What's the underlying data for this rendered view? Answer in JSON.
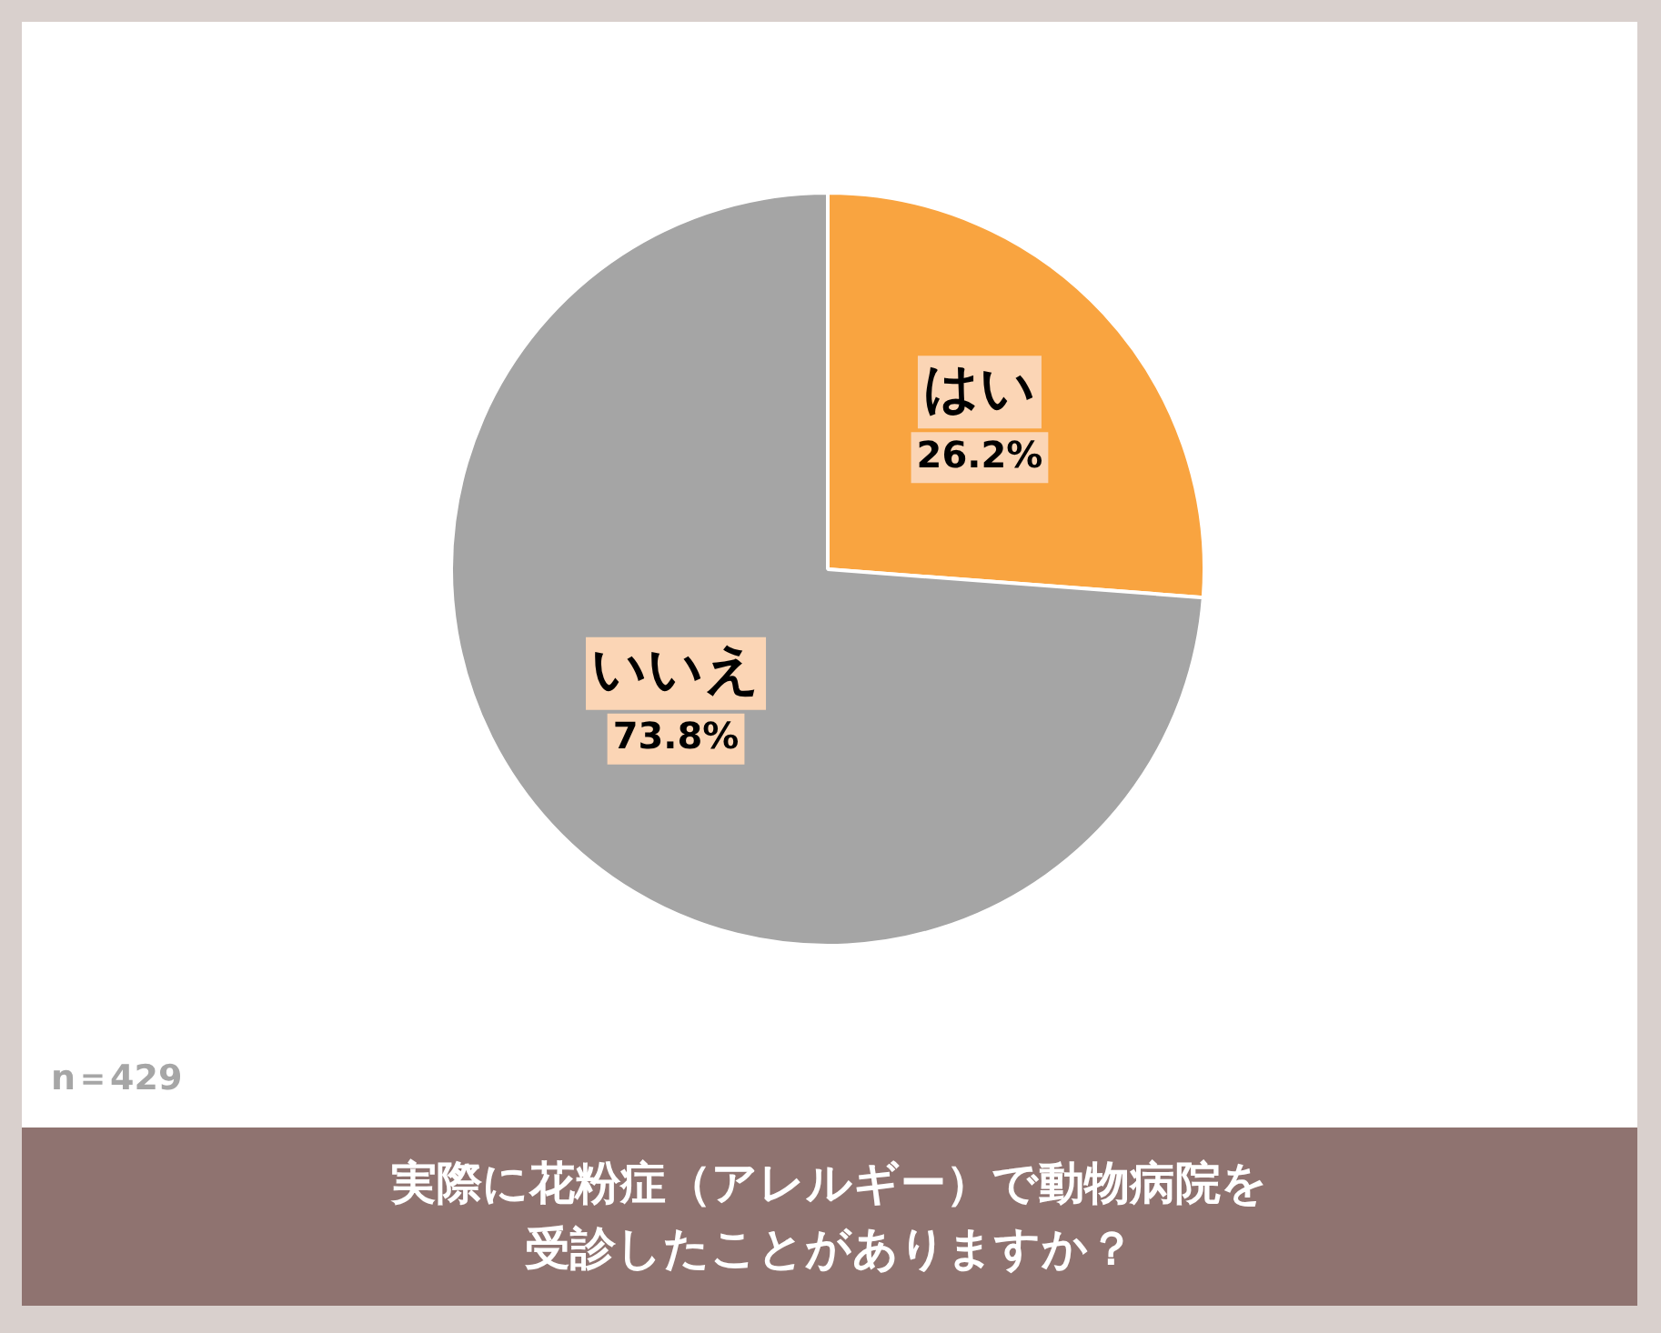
{
  "chart_data": {
    "type": "pie",
    "title": "実際に花粉症（アレルギー）で動物病院を受診したことがありますか？",
    "categories": [
      "はい",
      "いいえ"
    ],
    "values": [
      26.2,
      73.8
    ],
    "colors": [
      "#f9a440",
      "#a5a5a5"
    ],
    "value_labels": [
      "26.2%",
      "73.8%"
    ],
    "legend": false,
    "annotations": [
      "n＝429"
    ]
  }
}
